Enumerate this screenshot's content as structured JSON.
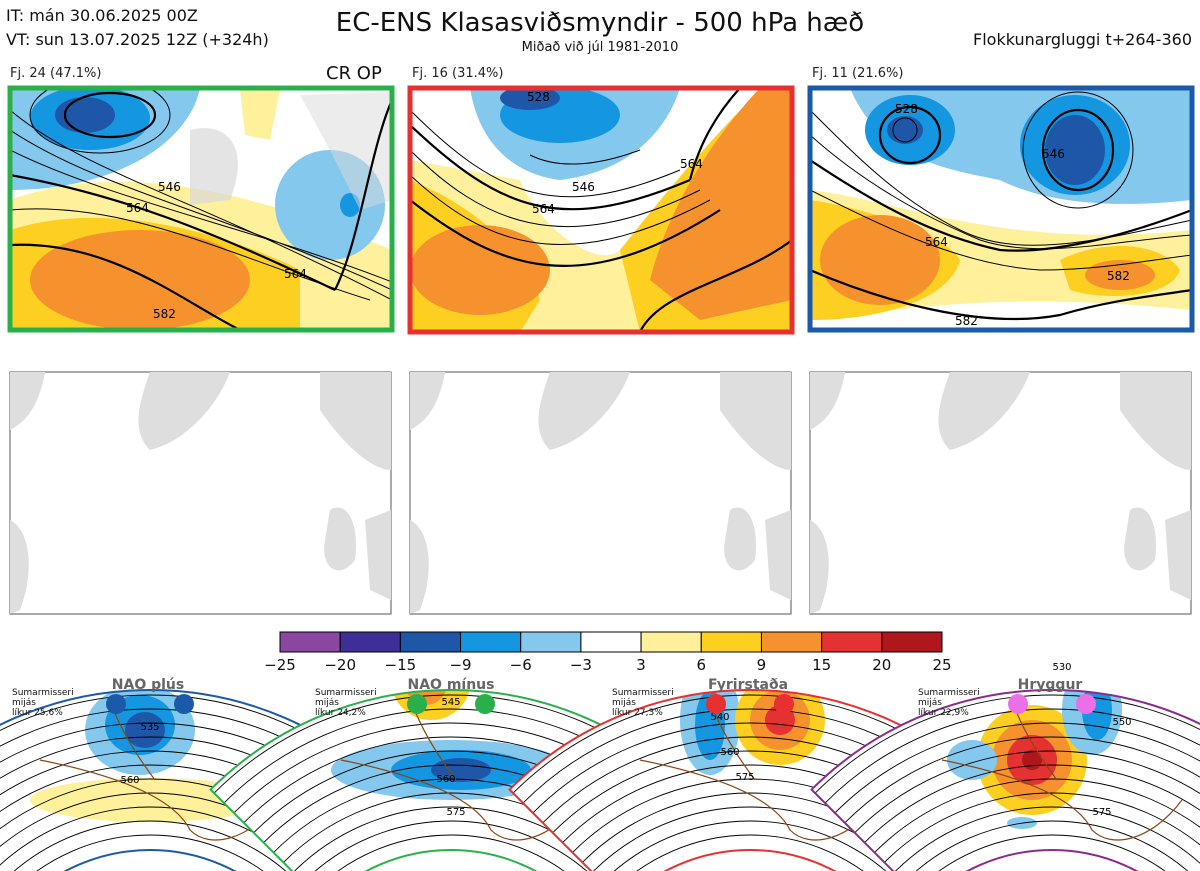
{
  "header": {
    "init_line": "IT: mán 30.06.2025 00Z",
    "valid_line": "VT: sun 13.07.2025 12Z  (+324h)",
    "title": "EC-ENS Klasasviðsmyndir - 500 hPa hæð",
    "subtitle": "Miðað við júl 1981-2010",
    "window": "Flokkunargluggi t+264-360"
  },
  "clusters": [
    {
      "label": "Fj. 24 (47.1%)",
      "border_color": "#2ab04a",
      "contours": [
        "546",
        "564",
        "582"
      ],
      "extra": "CR OP"
    },
    {
      "label": "Fj. 16 (31.4%)",
      "border_color": "#e83030",
      "contours": [
        "528",
        "546",
        "564",
        "564"
      ]
    },
    {
      "label": "Fj. 11 (21.6%)",
      "border_color": "#1a5aa8",
      "contours": [
        "528",
        "546",
        "564",
        "582",
        "582"
      ]
    }
  ],
  "colorbar": {
    "ticks": [
      "−25",
      "−20",
      "−15",
      "−9",
      "−6",
      "−3",
      "3",
      "6",
      "9",
      "15",
      "20",
      "25"
    ],
    "colors": [
      "#8a46a0",
      "#3e2f96",
      "#1f57a8",
      "#1496e0",
      "#84c8ee",
      "#ffffff",
      "#fff09c",
      "#fccf21",
      "#f5922e",
      "#e33231",
      "#b0171c"
    ]
  },
  "regimes": [
    {
      "name": "NAO plús",
      "text": [
        "Sumarmisseri",
        "mijás",
        "líkur 25,6%"
      ],
      "dot_color": "#1a5aa8",
      "frame_color": "#1a5aa8",
      "contours": [
        "535",
        "560"
      ]
    },
    {
      "name": "NAO mínus",
      "text": [
        "Sumarmisseri",
        "mijás",
        "líkur 24,2%"
      ],
      "dot_color": "#2ab04a",
      "frame_color": "#2ab04a",
      "contours": [
        "545",
        "560",
        "575"
      ]
    },
    {
      "name": "Fyrirstaða",
      "text": [
        "Sumarmisseri",
        "mijás",
        "líkur 27,3%"
      ],
      "dot_color": "#e83030",
      "frame_color": "#e83030",
      "contours": [
        "540",
        "560",
        "575"
      ]
    },
    {
      "name": "Hryggur",
      "text": [
        "Sumarmisseri",
        "mijás",
        "líkur 22,9%"
      ],
      "dot_color": "#ec6fe8",
      "frame_color": "#8a2a8e",
      "contours": [
        "530",
        "550",
        "575"
      ]
    }
  ]
}
